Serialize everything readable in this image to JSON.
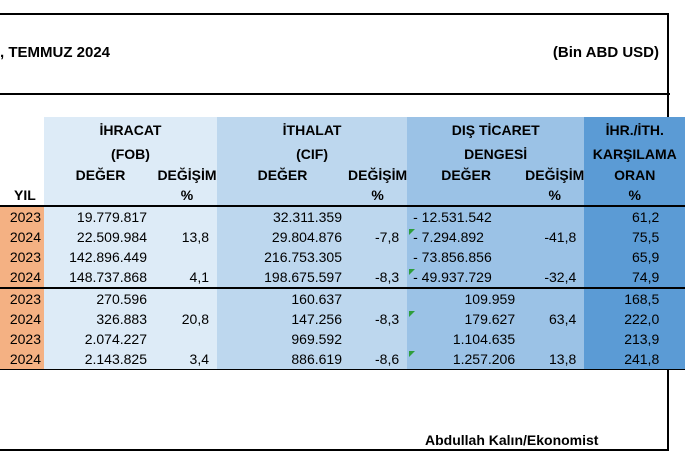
{
  "header": {
    "title": ", TEMMUZ 2024",
    "unit": "(Bin ABD USD)"
  },
  "columns": {
    "ihracat": [
      "İHRACAT",
      "(FOB)"
    ],
    "ithalat": [
      "İTHALAT",
      "(CIF)"
    ],
    "dis_ticaret": [
      "DIŞ TİCARET",
      "DENGESİ"
    ],
    "oran": [
      "İHR./İTH.",
      "KARŞILAMA"
    ],
    "deger": "DEĞER",
    "degisim": "DEĞİŞİM",
    "percent": "%",
    "oran_sub": "ORAN",
    "yil": "YIL"
  },
  "rows": [
    {
      "yil": "2023",
      "ihr": "19.779.817",
      "ihr_d": "",
      "ith": "32.311.359",
      "ith_d": "",
      "dt": "- 12.531.542",
      "dt_d": "",
      "or": "61,2"
    },
    {
      "yil": "2024",
      "ihr": "22.509.984",
      "ihr_d": "13,8",
      "ith": "29.804.876",
      "ith_d": "-7,8",
      "dt": "-  7.294.892",
      "dt_d": "-41,8",
      "or": "75,5"
    },
    {
      "yil": "2023",
      "ihr": "142.896.449",
      "ihr_d": "",
      "ith": "216.753.305",
      "ith_d": "",
      "dt": "- 73.856.856",
      "dt_d": "",
      "or": "65,9"
    },
    {
      "yil": "2024",
      "ihr": "148.737.868",
      "ihr_d": "4,1",
      "ith": "198.675.597",
      "ith_d": "-8,3",
      "dt": "- 49.937.729",
      "dt_d": "-32,4",
      "or": "74,9"
    },
    {
      "yil": "2023",
      "ihr": "270.596",
      "ihr_d": "",
      "ith": "160.637",
      "ith_d": "",
      "dt": "109.959",
      "dt_d": "",
      "or": "168,5"
    },
    {
      "yil": "2024",
      "ihr": "326.883",
      "ihr_d": "20,8",
      "ith": "147.256",
      "ith_d": "-8,3",
      "dt": "179.627",
      "dt_d": "63,4",
      "or": "222,0"
    },
    {
      "yil": "2023",
      "ihr": "2.074.227",
      "ihr_d": "",
      "ith": "969.592",
      "ith_d": "",
      "dt": "1.104.635",
      "dt_d": "",
      "or": "213,9"
    },
    {
      "yil": "2024",
      "ihr": "2.143.825",
      "ihr_d": "3,4",
      "ith": "886.619",
      "ith_d": "-8,6",
      "dt": "1.257.206",
      "dt_d": "13,8",
      "or": "241,8"
    }
  ],
  "footer": {
    "signature": "Abdullah Kalın/Ekonomist"
  },
  "colors": {
    "ihracat_bg": "#ddebf7",
    "ithalat_bg": "#bdd7ee",
    "dis_bg": "#9bc2e6",
    "oran_bg": "#5b9bd5",
    "yil_bg": "#f4b183",
    "cell_marker": "#2e9e3c"
  }
}
